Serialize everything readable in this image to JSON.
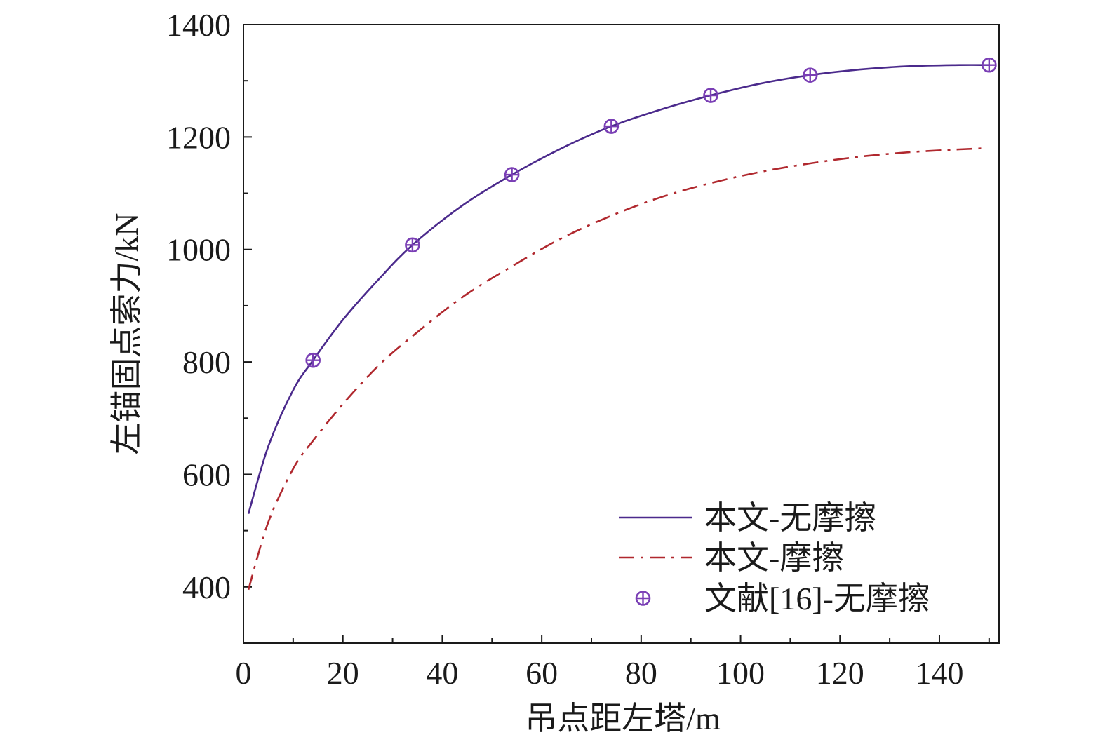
{
  "chart_data": {
    "type": "line",
    "xlabel": "吊点距左塔/m",
    "ylabel": "左锚固点索力/kN",
    "xlim": [
      0,
      152
    ],
    "ylim": [
      300,
      1400
    ],
    "xticks": [
      0,
      20,
      40,
      60,
      80,
      100,
      120,
      140
    ],
    "yticks": [
      400,
      600,
      800,
      1000,
      1200,
      1400
    ],
    "x_tick_labels": [
      "0",
      "20",
      "40",
      "60",
      "80",
      "100",
      "120",
      "140"
    ],
    "y_tick_labels": [
      "400",
      "600",
      "800",
      "1000",
      "1200",
      "1400"
    ],
    "grid": false,
    "legend_position": "bottom-right",
    "series": [
      {
        "name": "本文-无摩擦",
        "style": "solid",
        "color": "#4b2a8c",
        "x": [
          1,
          5,
          10,
          14,
          20,
          27,
          34,
          44,
          54,
          64,
          74,
          84,
          94,
          104,
          114,
          124,
          134,
          144,
          150
        ],
        "y": [
          530,
          650,
          750,
          803,
          875,
          945,
          1008,
          1078,
          1133,
          1180,
          1219,
          1249,
          1274,
          1295,
          1310,
          1320,
          1326,
          1328,
          1328
        ]
      },
      {
        "name": "本文-摩擦",
        "style": "dash-dot",
        "color": "#b0282e",
        "x": [
          1,
          5,
          10,
          14,
          20,
          27,
          34,
          44,
          54,
          64,
          74,
          84,
          94,
          104,
          114,
          124,
          134,
          144,
          149
        ],
        "y": [
          395,
          515,
          610,
          660,
          725,
          792,
          846,
          915,
          970,
          1020,
          1060,
          1093,
          1118,
          1138,
          1153,
          1165,
          1173,
          1178,
          1180
        ]
      },
      {
        "name": "文献[16]-无摩擦",
        "style": "marker",
        "marker": "circle-plus",
        "color": "#7a3fb5",
        "x": [
          14,
          34,
          54,
          74,
          94,
          114,
          150
        ],
        "y": [
          803,
          1008,
          1133,
          1219,
          1274,
          1310,
          1328
        ]
      }
    ]
  }
}
